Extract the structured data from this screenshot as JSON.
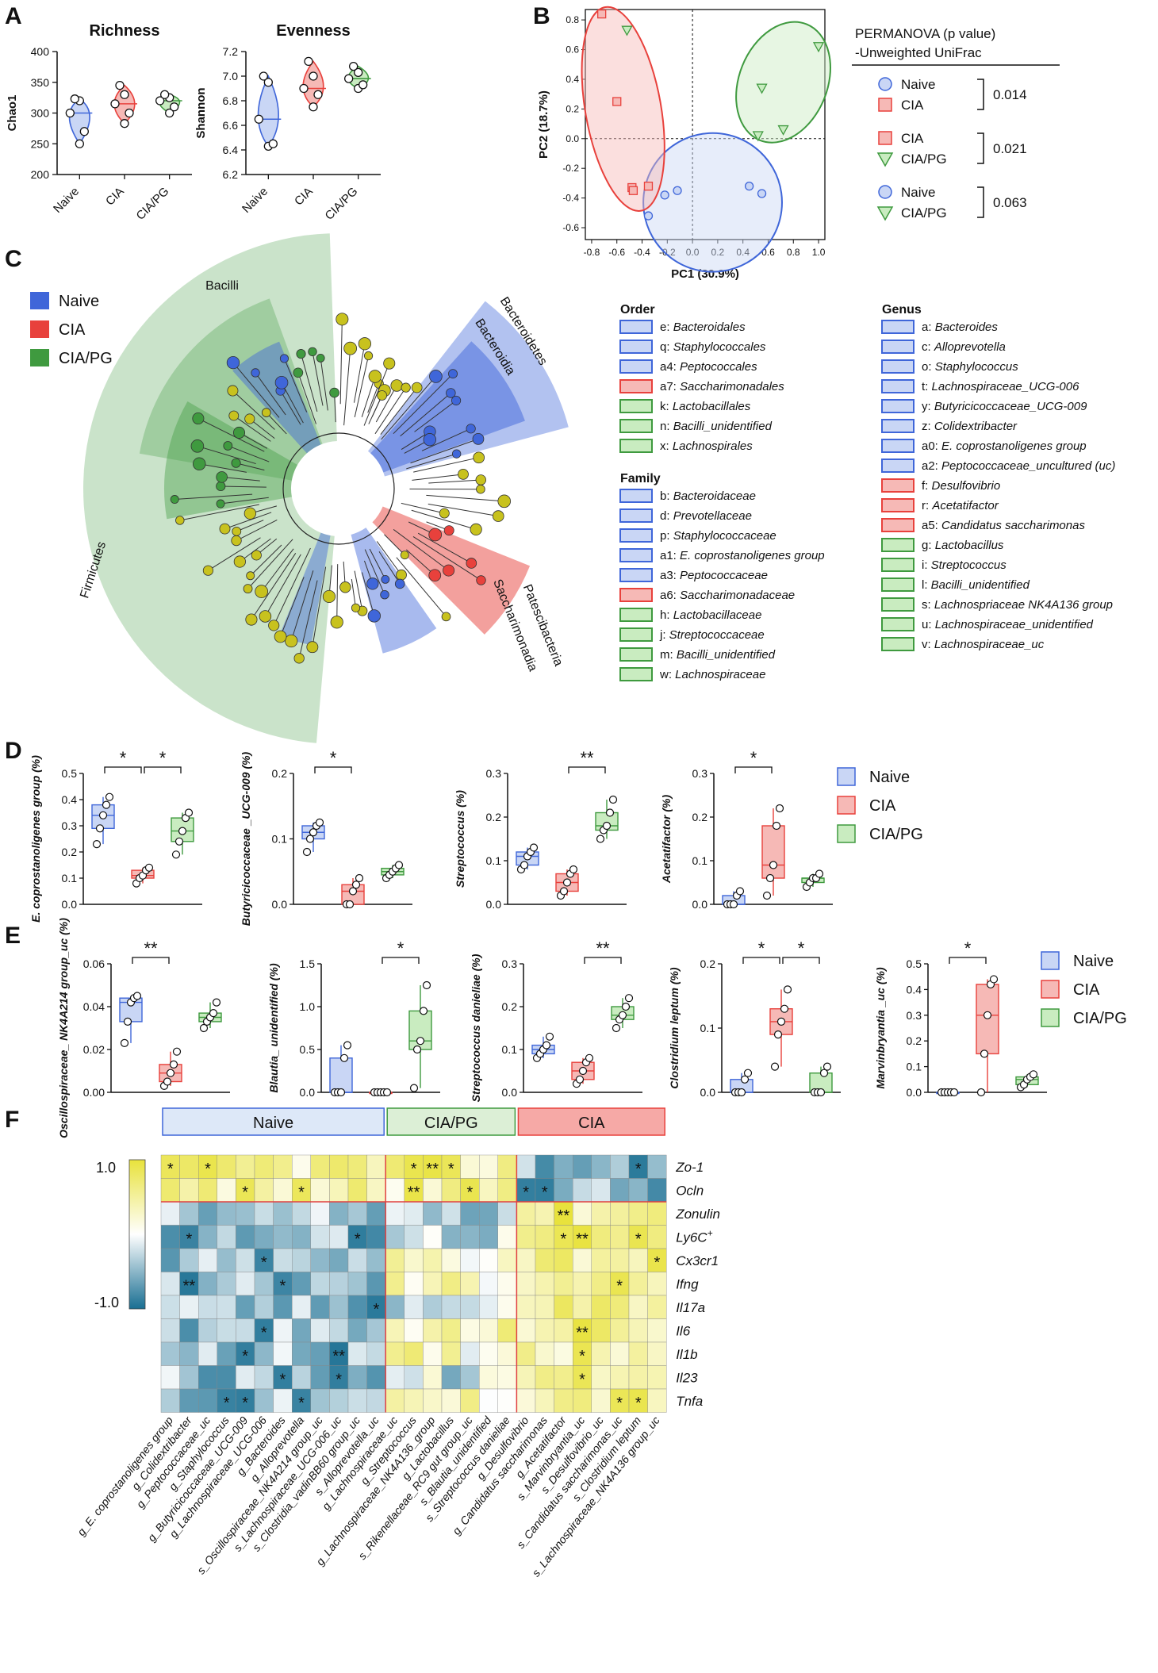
{
  "panel_letters": [
    "A",
    "B",
    "C",
    "D",
    "E",
    "F"
  ],
  "groups": [
    "Naive",
    "CIA",
    "CIA/PG"
  ],
  "colors": {
    "naive": "#3f66d9",
    "cia": "#e8413c",
    "ciapg": "#3f9a3f",
    "naive_fill": "#c9d6f5",
    "cia_fill": "#f6b9b6",
    "ciapg_fill": "#c9ecc0"
  },
  "chart_data": [
    {
      "id": "A1",
      "type": "violin",
      "title": "Richness",
      "ylabel": "Chao1",
      "ylim": [
        200,
        400
      ],
      "yticks": [
        "200",
        "250",
        "300",
        "350",
        "400"
      ],
      "categories": [
        "Naive",
        "CIA",
        "CIA/PG"
      ],
      "points": [
        [
          250,
          270,
          300,
          320,
          323
        ],
        [
          283,
          300,
          315,
          330,
          345
        ],
        [
          300,
          310,
          320,
          325,
          330
        ]
      ]
    },
    {
      "id": "A2",
      "type": "violin",
      "title": "Evenness",
      "ylabel": "Shannon",
      "ylim": [
        6.2,
        7.2
      ],
      "yticks": [
        "6.2",
        "6.4",
        "6.6",
        "6.8",
        "7.0",
        "7.2"
      ],
      "categories": [
        "Naive",
        "CIA",
        "CIA/PG"
      ],
      "points": [
        [
          6.43,
          6.45,
          6.65,
          6.95,
          7.0
        ],
        [
          6.75,
          6.85,
          6.9,
          7.0,
          7.12
        ],
        [
          6.9,
          6.93,
          6.98,
          7.03,
          7.08
        ]
      ]
    },
    {
      "id": "B",
      "type": "scatter",
      "xlabel": "PC1 (30.9%)",
      "ylabel": "PC2 (18.7%)",
      "xlim": [
        -0.85,
        1.05
      ],
      "ylim": [
        -0.68,
        0.87
      ],
      "xticks": [
        "-0.8",
        "-0.6",
        "-0.4",
        "-0.2",
        "0.0",
        "0.2",
        "0.4",
        "0.6",
        "0.8",
        "1.0"
      ],
      "yticks": [
        "-0.6",
        "-0.4",
        "-0.2",
        "0.0",
        "0.2",
        "0.4",
        "0.6",
        "0.8"
      ],
      "series": [
        {
          "name": "Naive",
          "x": [
            -0.35,
            -0.22,
            -0.12,
            0.45,
            0.55
          ],
          "y": [
            -0.52,
            -0.38,
            -0.35,
            -0.32,
            -0.37
          ]
        },
        {
          "name": "CIA",
          "x": [
            -0.72,
            -0.6,
            -0.48,
            -0.47,
            -0.35
          ],
          "y": [
            0.84,
            0.25,
            -0.33,
            -0.35,
            -0.32
          ]
        },
        {
          "name": "CIA/PG",
          "x": [
            -0.52,
            0.52,
            0.55,
            0.72,
            1.0
          ],
          "y": [
            0.73,
            0.02,
            0.34,
            0.06,
            0.62
          ]
        }
      ],
      "stats": {
        "title": "PERMANOVA (p value)",
        "subtitle": "-Unweighted UniFrac",
        "comparisons": [
          {
            "a": "Naive",
            "b": "CIA",
            "p": "0.014"
          },
          {
            "a": "CIA",
            "b": "CIA/PG",
            "p": "0.021"
          },
          {
            "a": "Naive",
            "b": "CIA/PG",
            "p": "0.063"
          }
        ]
      }
    },
    {
      "id": "D1",
      "type": "box",
      "ylabel": "E. coprostanoligenes group (%)",
      "ylim": [
        0,
        0.5
      ],
      "yticks": [
        "0.0",
        "0.1",
        "0.2",
        "0.3",
        "0.4",
        "0.5"
      ],
      "points": [
        [
          0.23,
          0.29,
          0.34,
          0.38,
          0.41
        ],
        [
          0.08,
          0.1,
          0.11,
          0.13,
          0.14
        ],
        [
          0.19,
          0.24,
          0.28,
          0.33,
          0.35
        ]
      ],
      "sig": [
        {
          "a": 0,
          "b": 1,
          "label": "*"
        },
        {
          "a": 1,
          "b": 2,
          "label": "*"
        }
      ]
    },
    {
      "id": "D2",
      "type": "box",
      "ylabel": "Butyricicoccaceae _UCG-009 (%)",
      "ylim": [
        0,
        0.2
      ],
      "yticks": [
        "0.0",
        "0.1",
        "0.2"
      ],
      "points": [
        [
          0.08,
          0.1,
          0.11,
          0.12,
          0.125
        ],
        [
          0.0,
          0.0,
          0.02,
          0.03,
          0.04
        ],
        [
          0.04,
          0.045,
          0.05,
          0.055,
          0.06
        ]
      ],
      "sig": [
        {
          "a": 0,
          "b": 1,
          "label": "*"
        }
      ]
    },
    {
      "id": "D3",
      "type": "box",
      "ylabel": "Streptococcus (%)",
      "ylim": [
        0,
        0.3
      ],
      "yticks": [
        "0.0",
        "0.1",
        "0.2",
        "0.3"
      ],
      "points": [
        [
          0.08,
          0.09,
          0.11,
          0.12,
          0.13
        ],
        [
          0.02,
          0.03,
          0.05,
          0.07,
          0.08
        ],
        [
          0.15,
          0.17,
          0.18,
          0.21,
          0.24
        ]
      ],
      "sig": [
        {
          "a": 1,
          "b": 2,
          "label": "**"
        }
      ]
    },
    {
      "id": "D4",
      "type": "box",
      "ylabel": "Acetatifactor (%)",
      "ylim": [
        0,
        0.3
      ],
      "yticks": [
        "0.0",
        "0.1",
        "0.2",
        "0.3"
      ],
      "points": [
        [
          0.0,
          0.0,
          0.0,
          0.02,
          0.03
        ],
        [
          0.02,
          0.06,
          0.09,
          0.18,
          0.22
        ],
        [
          0.04,
          0.05,
          0.06,
          0.06,
          0.07
        ]
      ],
      "sig": [
        {
          "a": 0,
          "b": 1,
          "label": "*"
        }
      ]
    },
    {
      "id": "E1",
      "type": "box",
      "ylabel": "Oscillospiraceae_ NK4A214 group_uc (%)",
      "ylim": [
        0,
        0.06
      ],
      "yticks": [
        "0.00",
        "0.02",
        "0.04",
        "0.06"
      ],
      "points": [
        [
          0.023,
          0.033,
          0.042,
          0.044,
          0.045
        ],
        [
          0.003,
          0.005,
          0.009,
          0.013,
          0.019
        ],
        [
          0.03,
          0.033,
          0.035,
          0.037,
          0.042
        ]
      ],
      "sig": [
        {
          "a": 0,
          "b": 1,
          "label": "**"
        }
      ]
    },
    {
      "id": "E2",
      "type": "box",
      "ylabel": "Blautia_ unidentified (%)",
      "ylim": [
        0,
        1.5
      ],
      "yticks": [
        "0.0",
        "0.5",
        "1.0",
        "1.5"
      ],
      "points": [
        [
          0.0,
          0.0,
          0.0,
          0.4,
          0.55
        ],
        [
          0.0,
          0.0,
          0.0,
          0.0,
          0.0
        ],
        [
          0.05,
          0.5,
          0.6,
          0.95,
          1.25
        ]
      ],
      "sig": [
        {
          "a": 1,
          "b": 2,
          "label": "*"
        }
      ]
    },
    {
      "id": "E3",
      "type": "box",
      "ylabel": "Streptococcus danieliae (%)",
      "ylim": [
        0,
        0.3
      ],
      "yticks": [
        "0.0",
        "0.1",
        "0.2",
        "0.3"
      ],
      "points": [
        [
          0.08,
          0.09,
          0.1,
          0.11,
          0.13
        ],
        [
          0.02,
          0.03,
          0.05,
          0.07,
          0.08
        ],
        [
          0.15,
          0.17,
          0.18,
          0.2,
          0.22
        ]
      ],
      "sig": [
        {
          "a": 1,
          "b": 2,
          "label": "**"
        }
      ]
    },
    {
      "id": "E4",
      "type": "box",
      "ylabel": "Clostridium leptum (%)",
      "ylim": [
        0,
        0.2
      ],
      "yticks": [
        "0.0",
        "0.1",
        "0.2"
      ],
      "points": [
        [
          0.0,
          0.0,
          0.0,
          0.02,
          0.03
        ],
        [
          0.04,
          0.09,
          0.11,
          0.13,
          0.16
        ],
        [
          0.0,
          0.0,
          0.0,
          0.03,
          0.04
        ]
      ],
      "sig": [
        {
          "a": 0,
          "b": 1,
          "label": "*"
        },
        {
          "a": 1,
          "b": 2,
          "label": "*"
        }
      ]
    },
    {
      "id": "E5",
      "type": "box",
      "ylabel": "Marvinbryantia _uc (%)",
      "ylim": [
        0,
        0.5
      ],
      "yticks": [
        "0.0",
        "0.1",
        "0.2",
        "0.3",
        "0.4",
        "0.5"
      ],
      "points": [
        [
          0.0,
          0.0,
          0.0,
          0.0,
          0.0
        ],
        [
          0.0,
          0.15,
          0.3,
          0.42,
          0.44
        ],
        [
          0.02,
          0.03,
          0.05,
          0.06,
          0.07
        ]
      ],
      "sig": [
        {
          "a": 0,
          "b": 1,
          "label": "*"
        }
      ]
    },
    {
      "id": "F",
      "type": "heatmap",
      "scale_max": "1.0",
      "scale_min": "-1.0",
      "rows": [
        "Zo-1",
        "Ocln",
        "Zonulin",
        "Ly6C+",
        "Cx3cr1",
        "Ifng",
        "Il17a",
        "Il6",
        "Il1b",
        "Il23",
        "Tnfa"
      ],
      "headers": [
        {
          "label": "Naive",
          "n": 12
        },
        {
          "label": "CIA/PG",
          "n": 7
        },
        {
          "label": "CIA",
          "n": 8
        }
      ],
      "columns": [
        "g_E. coprostanoligenes group",
        "g_Colidextribacter",
        "g_Peptococcaceae_uc",
        "g_Staphylococcus",
        "g_Butyricicoccaceae_UCG-009",
        "g_Lachnospiraceae_UCG-006",
        "g_Bacteroides",
        "g_Alloprevotella",
        "s_Oscillospiraceae_NK4A214 group_uc",
        "s_Lachnospiraceae_UCG-006_uc",
        "s_Clostridia_vadinBB60 group_uc",
        "s_Alloprevotella_uc",
        "g_Lachnospiraceae_uc",
        "g_Streptococcus",
        "g_Lachnospiraceae_NK4A136_group",
        "g_Lactobacillus",
        "s_Rikenellaceae_RC9 gut group_uc",
        "s_Blautia_unidentified",
        "s_Streptococcus danieliae",
        "g_Desulfovibrio",
        "g_Candidatus saccharimonas",
        "g_Acetatifactor",
        "s_Marvinbryantia_uc",
        "s_Desulfovibrio_uc",
        "s_Candidatus saccharimonas_uc",
        "s_Clostridium leptum",
        "s_Lachnospiraceae_NK4A136 group_uc"
      ]
    }
  ]
}
